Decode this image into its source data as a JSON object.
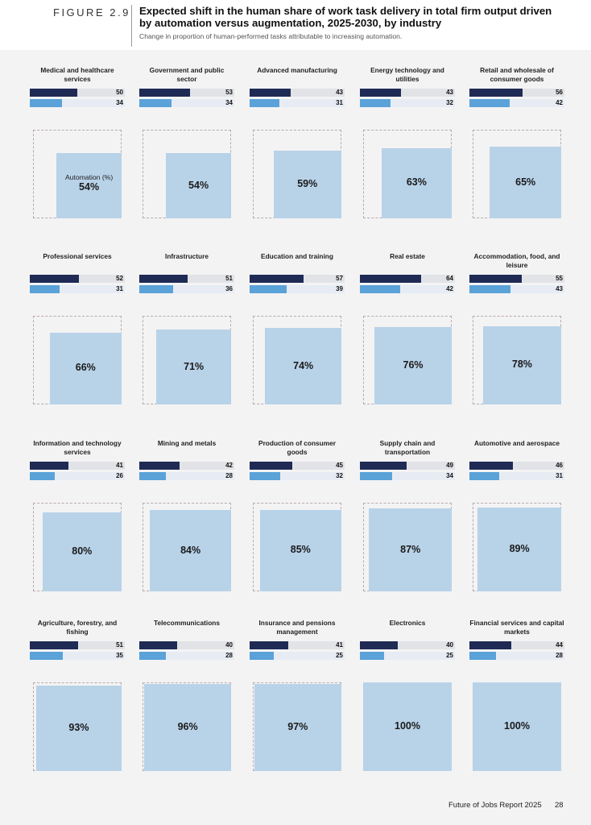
{
  "header": {
    "figure_label": "FIGURE 2.9",
    "title": "Expected shift in the human share of work task delivery in total firm output driven by automation versus augmentation, 2025-2030, by industry",
    "subtitle": "Change in proportion of human-performed tasks attributable to increasing automation."
  },
  "footer": {
    "report": "Future of Jobs Report 2025",
    "page": "28"
  },
  "colors": {
    "total_bar": "#1f2a55",
    "augmentation_bar": "#5aa2d8",
    "automation_box": "#b8d2e8"
  },
  "chart_data": {
    "type": "bar",
    "title": "Expected shift in the human share of work task delivery in total firm output driven by automation versus augmentation, 2025-2030, by industry",
    "subtitle": "Change in proportion of human-performed tasks attributable to increasing automation.",
    "bar_scale_max": 100,
    "box_caption": "Automation (%)",
    "industries": [
      {
        "name": "Medical and healthcare services",
        "top": 50,
        "bottom": 34,
        "automation": 54
      },
      {
        "name": "Government and public sector",
        "top": 53,
        "bottom": 34,
        "automation": 54
      },
      {
        "name": "Advanced manufacturing",
        "top": 43,
        "bottom": 31,
        "automation": 59
      },
      {
        "name": "Energy technology and utilities",
        "top": 43,
        "bottom": 32,
        "automation": 63
      },
      {
        "name": "Retail and wholesale of consumer goods",
        "top": 56,
        "bottom": 42,
        "automation": 65
      },
      {
        "name": "Professional services",
        "top": 52,
        "bottom": 31,
        "automation": 66
      },
      {
        "name": "Infrastructure",
        "top": 51,
        "bottom": 36,
        "automation": 71
      },
      {
        "name": "Education and training",
        "top": 57,
        "bottom": 39,
        "automation": 74
      },
      {
        "name": "Real estate",
        "top": 64,
        "bottom": 42,
        "automation": 76
      },
      {
        "name": "Accommodation, food, and leisure",
        "top": 55,
        "bottom": 43,
        "automation": 78
      },
      {
        "name": "Information and technology services",
        "top": 41,
        "bottom": 26,
        "automation": 80
      },
      {
        "name": "Mining and metals",
        "top": 42,
        "bottom": 28,
        "automation": 84
      },
      {
        "name": "Production of consumer goods",
        "top": 45,
        "bottom": 32,
        "automation": 85
      },
      {
        "name": "Supply chain and transportation",
        "top": 49,
        "bottom": 34,
        "automation": 87
      },
      {
        "name": "Automotive and aerospace",
        "top": 46,
        "bottom": 31,
        "automation": 89
      },
      {
        "name": "Agriculture, forestry, and fishing",
        "top": 51,
        "bottom": 35,
        "automation": 93
      },
      {
        "name": "Telecommunications",
        "top": 40,
        "bottom": 28,
        "automation": 96
      },
      {
        "name": "Insurance and pensions management",
        "top": 41,
        "bottom": 25,
        "automation": 97
      },
      {
        "name": "Electronics",
        "top": 40,
        "bottom": 25,
        "automation": 100
      },
      {
        "name": "Financial services and capital markets",
        "top": 44,
        "bottom": 28,
        "automation": 100
      }
    ]
  }
}
